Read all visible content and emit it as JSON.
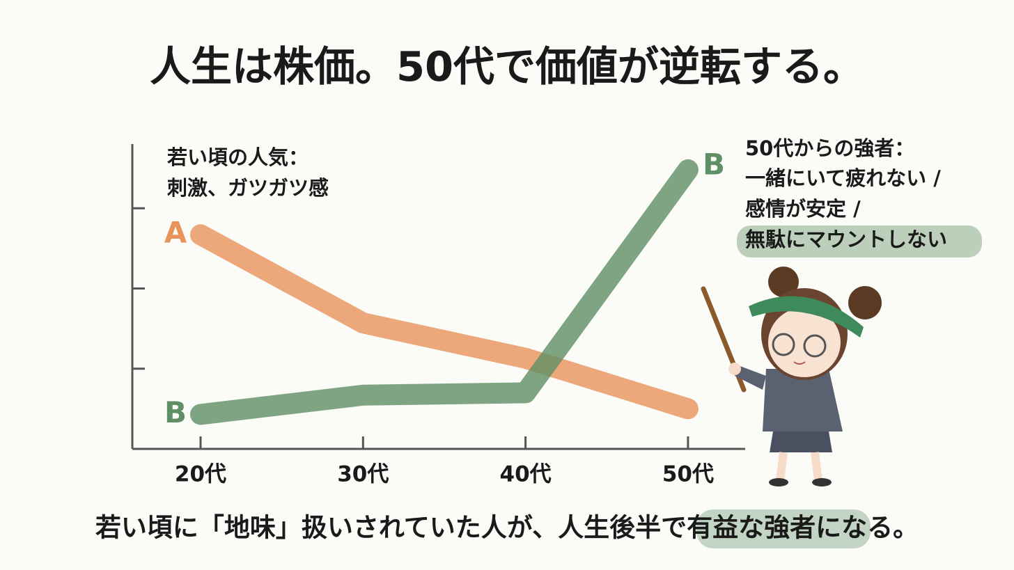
{
  "chart_data": {
    "type": "line",
    "title": "人生は株価。50代で価値が逆転する。",
    "annotation_left": [
      "若い頃の人気：",
      "刺激、ガツガツ感"
    ],
    "annotation_right": [
      "50代からの強者：",
      "一緒にいて疲れない /",
      "感情が安定 /",
      "無駄にマウントしない"
    ],
    "caption": "若い頃に「地味」扱いされていた人が、人生後半で有益な強者になる。",
    "categories": [
      "20代",
      "30代",
      "40代",
      "50代"
    ],
    "series": [
      {
        "name": "A",
        "color": "#e8935a",
        "values": [
          2.67,
          1.57,
          1.13,
          0.5
        ]
      },
      {
        "name": "B",
        "color": "#5f8f64",
        "values": [
          0.43,
          0.67,
          0.7,
          3.48
        ]
      }
    ],
    "ylim": [
      0,
      3.8
    ],
    "yticks": [
      1,
      2,
      3
    ]
  }
}
